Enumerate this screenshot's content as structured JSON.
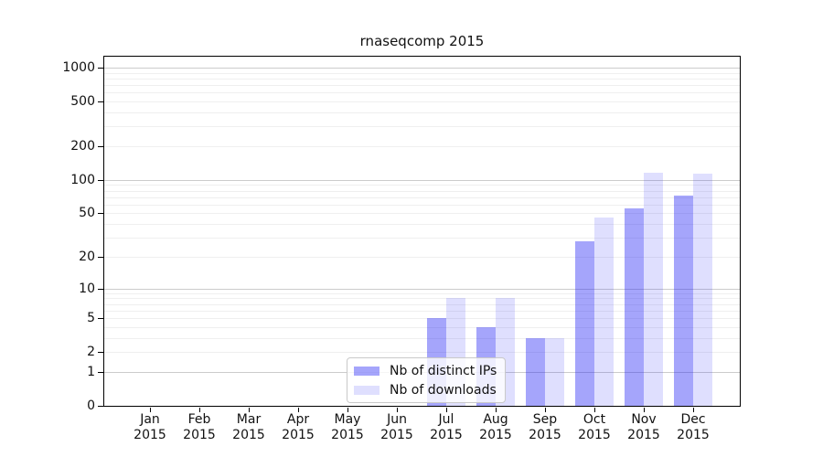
{
  "title": "rnaseqcomp 2015",
  "chart_data": {
    "type": "bar",
    "title": "rnaseqcomp 2015",
    "categories": [
      "Jan 2015",
      "Feb 2015",
      "Mar 2015",
      "Apr 2015",
      "May 2015",
      "Jun 2015",
      "Jul 2015",
      "Aug 2015",
      "Sep 2015",
      "Oct 2015",
      "Nov 2015",
      "Dec 2015"
    ],
    "month_labels": [
      "Jan",
      "Feb",
      "Mar",
      "Apr",
      "May",
      "Jun",
      "Jul",
      "Aug",
      "Sep",
      "Oct",
      "Nov",
      "Dec"
    ],
    "year_label": "2015",
    "series": [
      {
        "name": "Nb of distinct IPs",
        "values": [
          0,
          0,
          0,
          0,
          0,
          0,
          5,
          4,
          3,
          28,
          56,
          73
        ],
        "color": "rgba(30,30,245,0.40)"
      },
      {
        "name": "Nb of downloads",
        "values": [
          0,
          0,
          0,
          0,
          0,
          0,
          8,
          8,
          3,
          46,
          117,
          115
        ],
        "color": "rgba(30,30,245,0.14)"
      }
    ],
    "xlabel": "",
    "ylabel": "",
    "y_ticks": [
      0,
      1,
      2,
      5,
      10,
      20,
      50,
      100,
      200,
      500,
      1000
    ],
    "y_scale": "log10(1+x)",
    "ylim": [
      0,
      1300
    ],
    "grid": {
      "orientation": "horizontal",
      "major_at": [
        1,
        10,
        100,
        1000
      ],
      "minor_at": "multiples 2-9 of each decade",
      "major_color": "#cccccc",
      "minor_color": "#efefef"
    },
    "legend_position": "inside, lower-center-left of plot"
  },
  "colors": {
    "spine": "#000000",
    "text": "#111111",
    "bar_distinct_ips": "rgba(30,30,245,0.40)",
    "bar_downloads": "rgba(30,30,245,0.14)",
    "legend_border": "#c9c9c9",
    "legend_background": "rgba(255,255,255,0.8)"
  }
}
